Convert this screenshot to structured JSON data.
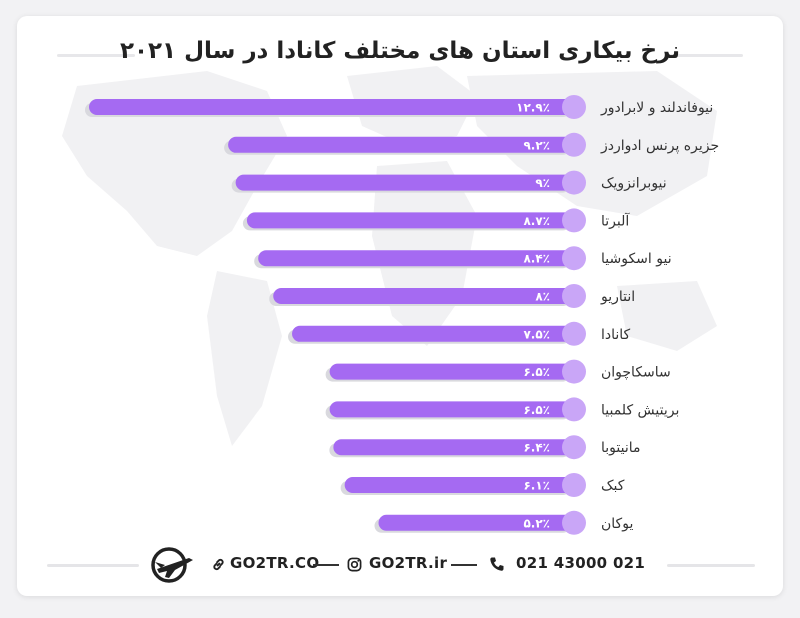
{
  "title": "نرخ بیکاری استان های مختلف کانادا در سال ۲۰۲۱",
  "colors": {
    "bar": "#a56af2",
    "knob": "#c9a6f7",
    "track": "#d9d9de",
    "value_text": "#ffffff"
  },
  "chart_data": {
    "type": "bar",
    "orientation": "horizontal",
    "title": "نرخ بیکاری استان های مختلف کانادا در سال ۲۰۲۱",
    "categories": [
      "نیوفاندلند و لابرادور",
      "جزیره پرنس ادواردز",
      "نیوبرانزویک",
      "آلبرتا",
      "نیو اسکوشیا",
      "انتاریو",
      "کانادا",
      "ساسکاچوان",
      "بریتیش کلمبیا",
      "مانیتوبا",
      "کبک",
      "یوکان"
    ],
    "values": [
      12.9,
      9.2,
      9,
      8.7,
      8.4,
      8,
      7.5,
      6.5,
      6.5,
      6.4,
      6.1,
      5.2
    ],
    "value_labels": [
      "۱۲.۹٪",
      "۹.۲٪",
      "۹٪",
      "۸.۷٪",
      "۸.۴٪",
      "۸٪",
      "۷.۵٪",
      "۶.۵٪",
      "۶.۵٪",
      "۶.۴٪",
      "۶.۱٪",
      "۵.۲٪"
    ],
    "unit": "%",
    "bar_direction": "right-to-left",
    "grid": false,
    "legend": "none"
  },
  "footer": {
    "phone_icon": "phone-icon",
    "phone": "021 43000 021",
    "instagram_icon": "instagram-icon",
    "instagram": "GO2TR.ir",
    "link_icon": "link-icon",
    "website": "GO2TR.CO",
    "logo_icon": "go2tr-plane-logo"
  }
}
